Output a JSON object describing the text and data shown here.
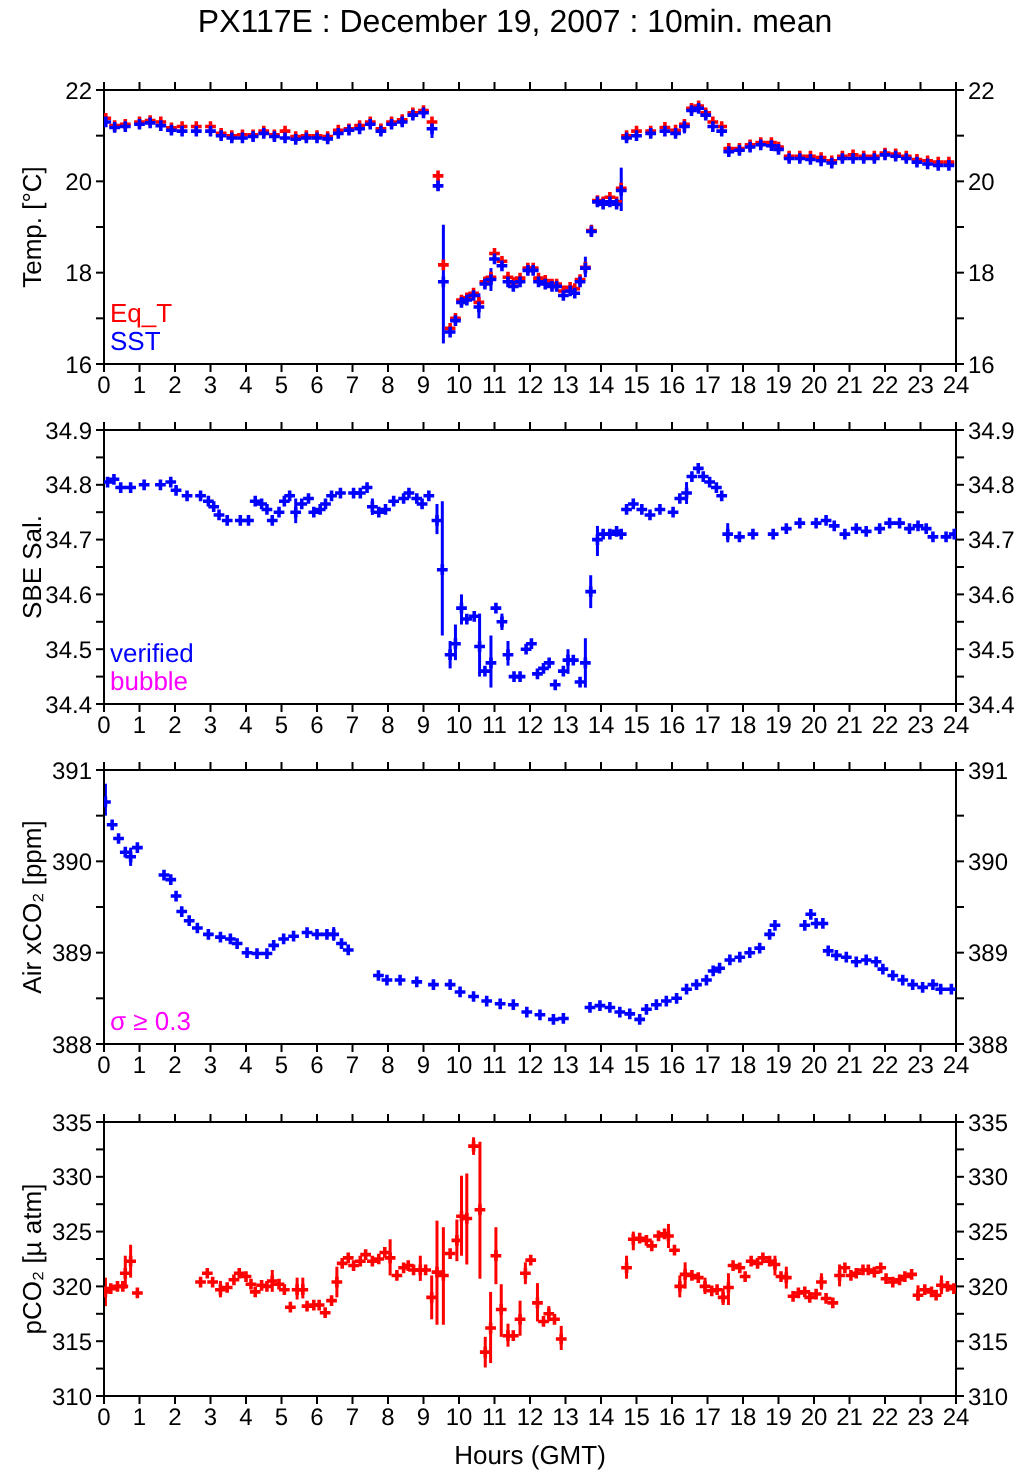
{
  "chart_data": [
    {
      "type": "scatter",
      "title": "PX117E : December 19, 2007 : 10min. mean",
      "ylabel": "Temp. [°C]",
      "xlim": [
        0,
        24
      ],
      "xticks": [
        0,
        1,
        2,
        3,
        4,
        5,
        6,
        7,
        8,
        9,
        10,
        11,
        12,
        13,
        14,
        15,
        16,
        17,
        18,
        19,
        20,
        21,
        22,
        23,
        24
      ],
      "ylim": [
        16,
        22
      ],
      "yticks": [
        16,
        {
          "value": 17,
          "label": null
        },
        18,
        {
          "value": 19,
          "label": null
        },
        20,
        {
          "value": 21,
          "label": null
        },
        22
      ],
      "y2lim": [
        16,
        22
      ],
      "y2ticks": [
        16,
        {
          "value": 17,
          "label": null
        },
        18,
        {
          "value": 19,
          "label": null
        },
        20,
        {
          "value": 21,
          "label": null
        },
        22
      ],
      "marker": "cross",
      "grid": false,
      "series": [
        {
          "name": "Eq_T",
          "color": "#ff0000",
          "x": [
            0.05,
            0.3,
            0.6,
            1.0,
            1.3,
            1.6,
            1.9,
            2.2,
            2.6,
            3.0,
            3.3,
            3.6,
            3.9,
            4.2,
            4.5,
            4.8,
            5.1,
            5.4,
            5.7,
            6.0,
            6.3,
            6.6,
            6.9,
            7.2,
            7.5,
            7.8,
            8.1,
            8.4,
            8.7,
            9.0,
            9.24,
            9.41,
            9.56,
            9.75,
            9.9,
            10.07,
            10.22,
            10.41,
            10.56,
            10.73,
            10.9,
            11.0,
            11.21,
            11.38,
            11.53,
            11.72,
            11.94,
            12.09,
            12.24,
            12.43,
            12.62,
            12.75,
            12.94,
            13.13,
            13.26,
            13.41,
            13.56,
            13.73,
            13.9,
            14.06,
            14.25,
            14.44,
            14.57,
            14.72,
            15.0,
            15.4,
            15.8,
            16.1,
            16.35,
            16.55,
            16.75,
            16.95,
            17.15,
            17.4,
            17.6,
            17.9,
            18.2,
            18.5,
            18.8,
            19.0,
            19.3,
            19.6,
            19.9,
            20.2,
            20.5,
            20.8,
            21.1,
            21.4,
            21.7,
            22.0,
            22.3,
            22.6,
            22.9,
            23.2,
            23.5,
            23.8
          ],
          "values": [
            21.38,
            21.22,
            21.25,
            21.3,
            21.33,
            21.3,
            21.17,
            21.2,
            21.2,
            21.2,
            21.05,
            21.0,
            21.02,
            21.02,
            21.1,
            21.02,
            21.1,
            20.98,
            21.0,
            21.0,
            20.98,
            21.12,
            21.15,
            21.22,
            21.3,
            21.15,
            21.3,
            21.35,
            21.5,
            21.55,
            21.3,
            20.12,
            18.17,
            16.78,
            17.0,
            17.4,
            17.45,
            17.55,
            17.35,
            17.8,
            17.9,
            18.42,
            18.25,
            17.9,
            17.78,
            17.88,
            18.1,
            18.1,
            17.88,
            17.83,
            17.75,
            17.75,
            17.6,
            17.68,
            17.65,
            17.85,
            18.12,
            18.92,
            19.58,
            19.55,
            19.65,
            19.55,
            19.85,
            21.0,
            21.1,
            21.1,
            21.18,
            21.12,
            21.25,
            21.6,
            21.65,
            21.5,
            21.3,
            21.2,
            20.72,
            20.72,
            20.8,
            20.85,
            20.85,
            20.75,
            20.55,
            20.55,
            20.55,
            20.52,
            20.45,
            20.55,
            20.58,
            20.55,
            20.55,
            20.62,
            20.6,
            20.55,
            20.48,
            20.45,
            20.42,
            20.42
          ]
        },
        {
          "name": "SST",
          "color": "#0000ff",
          "x": [
            0.05,
            0.3,
            0.6,
            1.0,
            1.3,
            1.6,
            1.9,
            2.2,
            2.6,
            3.0,
            3.3,
            3.6,
            3.9,
            4.2,
            4.5,
            4.8,
            5.1,
            5.4,
            5.7,
            6.0,
            6.3,
            6.6,
            6.9,
            7.2,
            7.5,
            7.8,
            8.1,
            8.4,
            8.7,
            9.0,
            9.24,
            9.41,
            9.56,
            9.75,
            9.9,
            10.07,
            10.22,
            10.41,
            10.56,
            10.73,
            10.9,
            11.0,
            11.21,
            11.38,
            11.53,
            11.72,
            11.94,
            12.09,
            12.24,
            12.43,
            12.62,
            12.75,
            12.94,
            13.13,
            13.26,
            13.41,
            13.56,
            13.73,
            13.9,
            14.06,
            14.25,
            14.44,
            14.57,
            14.72,
            15.0,
            15.4,
            15.8,
            16.1,
            16.35,
            16.55,
            16.75,
            16.95,
            17.15,
            17.4,
            17.6,
            17.9,
            18.2,
            18.5,
            18.8,
            19.0,
            19.3,
            19.6,
            19.9,
            20.2,
            20.5,
            20.8,
            21.1,
            21.4,
            21.7,
            22.0,
            22.3,
            22.6,
            22.9,
            23.2,
            23.5,
            23.8
          ],
          "values": [
            21.3,
            21.18,
            21.2,
            21.25,
            21.28,
            21.22,
            21.12,
            21.1,
            21.1,
            21.1,
            21.0,
            20.95,
            20.95,
            20.98,
            21.05,
            20.98,
            20.95,
            20.92,
            20.95,
            20.95,
            20.93,
            21.05,
            21.12,
            21.15,
            21.25,
            21.1,
            21.25,
            21.3,
            21.45,
            21.5,
            21.15,
            19.9,
            17.8,
            16.7,
            16.95,
            17.35,
            17.4,
            17.5,
            17.25,
            17.75,
            17.85,
            18.3,
            18.15,
            17.8,
            17.7,
            17.8,
            18.05,
            18.05,
            17.8,
            17.75,
            17.7,
            17.7,
            17.5,
            17.6,
            17.55,
            17.8,
            18.1,
            18.9,
            19.55,
            19.5,
            19.55,
            19.5,
            19.8,
            20.95,
            21.0,
            21.05,
            21.1,
            21.05,
            21.2,
            21.55,
            21.6,
            21.45,
            21.2,
            21.1,
            20.65,
            20.68,
            20.75,
            20.8,
            20.78,
            20.7,
            20.5,
            20.5,
            20.48,
            20.45,
            20.4,
            20.5,
            20.5,
            20.5,
            20.5,
            20.58,
            20.55,
            20.5,
            20.42,
            20.38,
            20.35,
            20.35
          ],
          "errors": [
            null,
            null,
            null,
            null,
            null,
            null,
            null,
            null,
            null,
            null,
            null,
            null,
            null,
            null,
            null,
            null,
            null,
            null,
            null,
            null,
            null,
            null,
            null,
            null,
            null,
            null,
            null,
            null,
            null,
            null,
            [
              20.95,
              21.3
            ],
            [
              19.8,
              20.05
            ],
            [
              16.45,
              19.05
            ],
            null,
            null,
            null,
            null,
            null,
            [
              17.0,
              17.55
            ],
            null,
            [
              17.6,
              18.1
            ],
            null,
            null,
            null,
            null,
            null,
            null,
            null,
            null,
            null,
            null,
            null,
            null,
            null,
            null,
            null,
            [
              17.9,
              18.35
            ],
            [
              18.8,
              19.05
            ],
            null,
            null,
            null,
            null,
            [
              19.35,
              20.3
            ],
            null,
            null,
            null,
            null,
            null,
            [
              21.05,
              21.35
            ],
            null,
            null,
            null,
            null,
            null,
            null,
            null,
            null,
            null,
            null,
            null,
            null,
            null,
            null,
            null,
            null,
            null,
            null,
            null,
            null,
            null,
            null,
            null,
            null,
            null,
            null,
            null
          ]
        }
      ]
    },
    {
      "type": "scatter",
      "ylabel": "SBE Sal.",
      "xlim": [
        0,
        24
      ],
      "xticks": [
        0,
        1,
        2,
        3,
        4,
        5,
        6,
        7,
        8,
        9,
        10,
        11,
        12,
        13,
        14,
        15,
        16,
        17,
        18,
        19,
        20,
        21,
        22,
        23,
        24
      ],
      "ylim": [
        34.4,
        34.9
      ],
      "yticks": [
        34.4,
        {
          "value": 34.45,
          "label": null
        },
        34.5,
        {
          "value": 34.55,
          "label": null
        },
        34.6,
        {
          "value": 34.65,
          "label": null
        },
        34.7,
        {
          "value": 34.75,
          "label": null
        },
        34.8,
        {
          "value": 34.85,
          "label": null
        },
        34.9
      ],
      "y2lim": [
        34.4,
        34.9
      ],
      "y2ticks": [
        34.4,
        {
          "value": 34.45,
          "label": null
        },
        34.5,
        {
          "value": 34.55,
          "label": null
        },
        34.6,
        {
          "value": 34.65,
          "label": null
        },
        34.7,
        {
          "value": 34.75,
          "label": null
        },
        34.8,
        {
          "value": 34.85,
          "label": null
        },
        34.9
      ],
      "marker": "cross",
      "grid": false,
      "series": [
        {
          "name": "verified",
          "color": "#0000ff",
          "x": [
            0.1,
            0.28,
            0.47,
            0.75,
            1.13,
            1.59,
            1.88,
            2.03,
            2.34,
            2.72,
            2.94,
            3.09,
            3.24,
            3.47,
            3.84,
            4.07,
            4.26,
            4.44,
            4.59,
            4.74,
            4.93,
            5.08,
            5.23,
            5.4,
            5.57,
            5.76,
            5.91,
            6.09,
            6.24,
            6.41,
            6.66,
            7.03,
            7.22,
            7.41,
            7.56,
            7.74,
            7.93,
            8.16,
            8.44,
            8.59,
            8.81,
            8.96,
            9.15,
            9.38,
            9.53,
            9.75,
            9.9,
            10.07,
            10.22,
            10.43,
            10.58,
            10.73,
            10.9,
            11.04,
            11.21,
            11.38,
            11.55,
            11.72,
            11.89,
            12.04,
            12.21,
            12.38,
            12.54,
            12.71,
            12.94,
            13.07,
            13.22,
            13.41,
            13.56,
            13.71,
            13.9,
            14.06,
            14.25,
            14.44,
            14.57,
            14.72,
            14.91,
            15.15,
            15.38,
            15.66,
            16.03,
            16.22,
            16.41,
            16.56,
            16.74,
            16.88,
            17.06,
            17.25,
            17.4,
            17.57,
            17.9,
            18.28,
            18.85,
            19.22,
            19.6,
            20.06,
            20.34,
            20.57,
            20.87,
            21.19,
            21.47,
            21.85,
            22.13,
            22.41,
            22.69,
            22.93,
            23.16,
            23.35,
            23.72,
            23.95
          ],
          "values": [
            34.805,
            34.81,
            34.795,
            34.795,
            34.8,
            34.8,
            34.805,
            34.79,
            34.78,
            34.78,
            34.77,
            34.76,
            34.745,
            34.735,
            34.735,
            34.735,
            34.77,
            34.765,
            34.755,
            34.735,
            34.75,
            34.77,
            34.78,
            34.75,
            34.765,
            34.775,
            34.75,
            34.755,
            34.765,
            34.78,
            34.785,
            34.785,
            34.785,
            34.795,
            34.76,
            34.75,
            34.755,
            34.77,
            34.775,
            34.785,
            34.775,
            34.765,
            34.78,
            34.735,
            34.645,
            34.49,
            34.51,
            34.575,
            34.555,
            34.56,
            34.505,
            34.46,
            34.475,
            34.575,
            34.55,
            34.49,
            34.45,
            34.45,
            34.5,
            34.51,
            34.455,
            34.465,
            34.475,
            34.435,
            34.46,
            34.48,
            34.48,
            34.44,
            34.475,
            34.605,
            34.7,
            34.71,
            34.71,
            34.715,
            34.71,
            34.755,
            34.765,
            34.755,
            34.745,
            34.755,
            34.75,
            34.775,
            34.785,
            34.815,
            34.83,
            34.815,
            34.805,
            34.795,
            34.78,
            34.71,
            34.705,
            34.71,
            34.71,
            34.72,
            34.73,
            34.73,
            34.735,
            34.725,
            34.71,
            34.72,
            34.715,
            34.72,
            34.73,
            34.73,
            34.72,
            34.725,
            34.72,
            34.705,
            34.705,
            34.71
          ],
          "errors": [
            null,
            null,
            null,
            null,
            null,
            null,
            null,
            null,
            null,
            null,
            null,
            null,
            null,
            null,
            null,
            null,
            null,
            null,
            null,
            null,
            null,
            null,
            null,
            [
              34.73,
              34.775
            ],
            null,
            null,
            null,
            null,
            null,
            null,
            null,
            null,
            null,
            null,
            [
              34.745,
              34.775
            ],
            null,
            null,
            null,
            null,
            null,
            null,
            null,
            null,
            [
              34.71,
              34.765
            ],
            [
              34.525,
              34.77
            ],
            [
              34.465,
              34.515
            ],
            [
              34.48,
              34.545
            ],
            [
              34.545,
              34.6
            ],
            null,
            null,
            [
              34.45,
              34.565
            ],
            null,
            [
              34.43,
              34.525
            ],
            null,
            [
              34.535,
              34.565
            ],
            [
              34.47,
              34.515
            ],
            null,
            null,
            null,
            null,
            null,
            null,
            null,
            null,
            null,
            [
              34.455,
              34.5
            ],
            null,
            null,
            [
              34.43,
              34.52
            ],
            [
              34.575,
              34.635
            ],
            [
              34.67,
              34.725
            ],
            null,
            null,
            null,
            null,
            null,
            null,
            null,
            null,
            null,
            null,
            null,
            [
              34.765,
              34.805
            ],
            null,
            null,
            null,
            null,
            null,
            null,
            [
              34.695,
              34.73
            ],
            null,
            null,
            null,
            null,
            null,
            null,
            null,
            null,
            null,
            null,
            null,
            null,
            null,
            null,
            null,
            null,
            null,
            null,
            null,
            null
          ]
        },
        {
          "name": "bubble",
          "color": "#ff00ff"
        }
      ]
    },
    {
      "type": "scatter",
      "ylabel": "Air xCO₂ [ppm]",
      "xlim": [
        0,
        24
      ],
      "xticks": [
        0,
        1,
        2,
        3,
        4,
        5,
        6,
        7,
        8,
        9,
        10,
        11,
        12,
        13,
        14,
        15,
        16,
        17,
        18,
        19,
        20,
        21,
        22,
        23,
        24
      ],
      "ylim": [
        388,
        391
      ],
      "yticks": [
        388,
        {
          "value": 388.5,
          "label": null
        },
        389,
        {
          "value": 389.5,
          "label": null
        },
        390,
        {
          "value": 390.5,
          "label": null
        },
        391
      ],
      "y2lim": [
        388,
        391
      ],
      "y2ticks": [
        388,
        {
          "value": 388.5,
          "label": null
        },
        389,
        {
          "value": 389.5,
          "label": null
        },
        390,
        {
          "value": 390.5,
          "label": null
        },
        391
      ],
      "marker": "cross",
      "grid": false,
      "series": [
        {
          "color": "#0000ff",
          "x": [
            0.04,
            0.23,
            0.41,
            0.6,
            0.75,
            0.94,
            1.69,
            1.88,
            2.03,
            2.19,
            2.4,
            2.63,
            2.94,
            3.28,
            3.56,
            3.75,
            4.03,
            4.31,
            4.59,
            4.78,
            5.06,
            5.34,
            5.72,
            6.0,
            6.28,
            6.47,
            6.69,
            6.88,
            7.73,
            7.97,
            8.34,
            8.81,
            9.28,
            9.75,
            10.03,
            10.41,
            10.78,
            11.16,
            11.53,
            11.91,
            12.28,
            12.66,
            12.94,
            13.69,
            13.97,
            14.25,
            14.53,
            14.81,
            15.09,
            15.28,
            15.56,
            15.84,
            16.13,
            16.41,
            16.69,
            16.97,
            17.16,
            17.34,
            17.63,
            17.91,
            18.19,
            18.47,
            18.75,
            18.9,
            19.74,
            19.91,
            20.06,
            20.25,
            20.4,
            20.63,
            20.91,
            21.19,
            21.47,
            21.75,
            21.94,
            22.22,
            22.5,
            22.78,
            23.06,
            23.35,
            23.57,
            23.87
          ],
          "values": [
            390.65,
            390.4,
            390.25,
            390.1,
            390.05,
            390.15,
            389.85,
            389.8,
            389.62,
            389.45,
            389.35,
            389.27,
            389.2,
            389.17,
            389.15,
            389.1,
            389.0,
            388.99,
            388.99,
            389.08,
            389.15,
            389.18,
            389.22,
            389.2,
            389.2,
            389.2,
            389.1,
            389.03,
            388.75,
            388.7,
            388.7,
            388.68,
            388.65,
            388.65,
            388.57,
            388.52,
            388.47,
            388.44,
            388.43,
            388.35,
            388.32,
            388.27,
            388.28,
            388.4,
            388.42,
            388.4,
            388.35,
            388.33,
            388.27,
            388.38,
            388.43,
            388.47,
            388.5,
            388.6,
            388.65,
            388.7,
            388.8,
            388.83,
            388.92,
            388.95,
            389.0,
            389.05,
            389.2,
            389.3,
            389.3,
            389.42,
            389.32,
            389.32,
            389.02,
            388.97,
            388.95,
            388.9,
            388.92,
            388.9,
            388.82,
            388.75,
            388.7,
            388.65,
            388.62,
            388.65,
            388.6,
            388.6
          ],
          "errors": [
            [
              390.5,
              390.85
            ],
            null,
            null,
            null,
            [
              389.95,
              390.15
            ],
            null,
            null,
            null,
            null,
            null,
            null,
            null,
            null,
            null,
            null,
            null,
            null,
            null,
            null,
            null,
            null,
            null,
            null,
            null,
            null,
            [
              389.13,
              389.28
            ],
            null,
            null,
            null,
            null,
            null,
            null,
            null,
            null,
            null,
            null,
            null,
            null,
            null,
            null,
            null,
            null,
            null,
            null,
            null,
            null,
            null,
            null,
            null,
            null,
            null,
            null,
            null,
            null,
            null,
            null,
            null,
            null,
            null,
            null,
            null,
            null,
            null,
            null,
            null,
            null,
            null,
            null,
            null,
            null,
            null,
            null,
            null,
            null,
            null,
            null,
            null,
            null,
            null,
            null,
            null,
            null
          ]
        },
        {
          "name": "σ ≥ 0.3",
          "color": "#ff00ff"
        }
      ]
    },
    {
      "type": "scatter",
      "ylabel": "pCO₂ [µ atm]",
      "xlabel": "Hours (GMT)",
      "xlim": [
        0,
        24
      ],
      "xticks": [
        0,
        1,
        2,
        3,
        4,
        5,
        6,
        7,
        8,
        9,
        10,
        11,
        12,
        13,
        14,
        15,
        16,
        17,
        18,
        19,
        20,
        21,
        22,
        23,
        24
      ],
      "ylim": [
        310,
        335
      ],
      "yticks": [
        310,
        {
          "value": 312.5,
          "label": null
        },
        315,
        {
          "value": 317.5,
          "label": null
        },
        320,
        {
          "value": 322.5,
          "label": null
        },
        325,
        {
          "value": 327.5,
          "label": null
        },
        330,
        {
          "value": 332.5,
          "label": null
        },
        335
      ],
      "y2lim": [
        310,
        335
      ],
      "y2ticks": [
        310,
        {
          "value": 312.5,
          "label": null
        },
        315,
        {
          "value": 317.5,
          "label": null
        },
        320,
        {
          "value": 322.5,
          "label": null
        },
        325,
        {
          "value": 327.5,
          "label": null
        },
        330,
        {
          "value": 332.5,
          "label": null
        },
        335
      ],
      "marker": "cross",
      "grid": false,
      "series": [
        {
          "color": "#ff0000",
          "x": [
            0.04,
            0.19,
            0.38,
            0.53,
            0.6,
            0.75,
            0.94,
            2.72,
            2.91,
            3.06,
            3.28,
            3.47,
            3.66,
            3.81,
            4.0,
            4.14,
            4.26,
            4.44,
            4.59,
            4.74,
            4.93,
            5.08,
            5.25,
            5.44,
            5.6,
            5.72,
            5.91,
            6.06,
            6.23,
            6.41,
            6.56,
            6.71,
            6.88,
            7.03,
            7.22,
            7.37,
            7.56,
            7.74,
            7.91,
            8.06,
            8.25,
            8.44,
            8.57,
            8.72,
            8.91,
            9.06,
            9.23,
            9.38,
            9.56,
            9.75,
            9.94,
            10.07,
            10.22,
            10.41,
            10.59,
            10.74,
            10.89,
            11.04,
            11.19,
            11.38,
            11.53,
            11.72,
            11.87,
            12.02,
            12.21,
            12.38,
            12.53,
            12.69,
            12.88,
            14.72,
            14.91,
            15.09,
            15.28,
            15.43,
            15.62,
            15.79,
            15.9,
            16.07,
            16.22,
            16.37,
            16.56,
            16.74,
            16.93,
            17.12,
            17.27,
            17.44,
            17.59,
            17.72,
            17.91,
            18.06,
            18.23,
            18.41,
            18.56,
            18.75,
            18.9,
            19.07,
            19.22,
            19.41,
            19.56,
            19.74,
            19.88,
            20.06,
            20.21,
            20.34,
            20.53,
            20.72,
            20.87,
            21.04,
            21.19,
            21.38,
            21.53,
            21.7,
            21.88,
            22.03,
            22.22,
            22.41,
            22.56,
            22.75,
            22.93,
            23.12,
            23.31,
            23.44,
            23.59,
            23.76,
            23.94
          ],
          "values": [
            319.5,
            319.8,
            320.0,
            320.0,
            321.2,
            322.3,
            319.4,
            320.4,
            321.2,
            320.4,
            319.7,
            319.9,
            320.6,
            321.2,
            320.9,
            320.2,
            319.5,
            320.1,
            320.0,
            320.5,
            320.2,
            319.7,
            318.1,
            319.7,
            319.7,
            318.2,
            318.3,
            318.3,
            317.6,
            318.7,
            320.4,
            322.1,
            322.6,
            321.9,
            322.3,
            322.9,
            322.3,
            322.5,
            323.1,
            322.6,
            321.0,
            321.7,
            321.9,
            321.5,
            321.5,
            321.5,
            319.0,
            321.3,
            321.0,
            323.0,
            324.2,
            326.4,
            326.2,
            332.8,
            327.0,
            314.0,
            316.2,
            322.8,
            317.9,
            315.5,
            315.5,
            317.0,
            321.2,
            322.4,
            318.5,
            316.8,
            317.5,
            317.0,
            315.2,
            321.7,
            324.3,
            324.4,
            324.2,
            323.7,
            324.6,
            324.8,
            324.6,
            323.3,
            320.0,
            321.1,
            321.0,
            320.8,
            320.0,
            319.6,
            319.7,
            319.0,
            319.9,
            321.9,
            321.7,
            320.9,
            322.3,
            322.1,
            322.6,
            322.3,
            322.0,
            320.9,
            320.8,
            319.1,
            319.4,
            319.5,
            319.0,
            319.3,
            320.4,
            318.9,
            318.5,
            321.0,
            321.7,
            321.0,
            321.2,
            321.5,
            321.5,
            321.3,
            321.7,
            320.7,
            320.4,
            320.6,
            320.9,
            321.1,
            319.2,
            319.7,
            319.5,
            319.2,
            320.1,
            320.0,
            319.8
          ],
          "errors": [
            [
              318.2,
              320.8
            ],
            null,
            null,
            null,
            [
              319.8,
              322.8
            ],
            [
              320.8,
              323.8
            ],
            null,
            null,
            null,
            null,
            [
              319,
              320.5
            ],
            null,
            null,
            null,
            null,
            null,
            null,
            null,
            null,
            [
              319.5,
              321.5
            ],
            null,
            null,
            null,
            [
              318.8,
              320.8
            ],
            [
              318.9,
              320.8
            ],
            null,
            null,
            null,
            null,
            null,
            [
              319,
              321.8
            ],
            null,
            null,
            null,
            null,
            null,
            null,
            null,
            null,
            [
              321,
              324.3
            ],
            null,
            null,
            null,
            null,
            [
              320.5,
              322.8
            ],
            null,
            [
              317,
              321
            ],
            [
              316.5,
              326
            ],
            [
              316.5,
              325.4
            ],
            null,
            [
              322.3,
              326.1
            ],
            [
              322.8,
              330.1
            ],
            [
              322,
              330.3
            ],
            [
              332,
              333.6
            ],
            [
              320.7,
              333.2
            ],
            [
              312.6,
              315.4
            ],
            [
              313,
              319.5
            ],
            [
              320.2,
              325.4
            ],
            [
              315.4,
              320.2
            ],
            [
              314.5,
              316.6
            ],
            null,
            [
              315.5,
              318.7
            ],
            [
              320.2,
              322.2
            ],
            null,
            [
              316.8,
              320.3
            ],
            null,
            [
              316.8,
              318.2
            ],
            null,
            [
              314.2,
              316.4
            ],
            [
              320.7,
              322.8
            ],
            [
              323.3,
              325
            ],
            null,
            null,
            null,
            null,
            null,
            [
              323.5,
              325.7
            ],
            null,
            [
              319,
              321
            ],
            [
              319.8,
              322.2
            ],
            null,
            null,
            [
              319.3,
              320.8
            ],
            null,
            null,
            [
              318.3,
              319.8
            ],
            [
              318.3,
              321.2
            ],
            null,
            null,
            null,
            null,
            null,
            null,
            null,
            [
              321,
              322.8
            ],
            null,
            [
              319.8,
              321.8
            ],
            null,
            null,
            null,
            null,
            null,
            [
              319.7,
              321.2
            ],
            null,
            null,
            [
              320,
              322
            ],
            null,
            null,
            null,
            null,
            null,
            null,
            null,
            null,
            null,
            null,
            null,
            null,
            [
              318.7,
              320.1
            ],
            null,
            null,
            null,
            [
              319.3,
              321
            ],
            null,
            null
          ]
        }
      ]
    }
  ]
}
